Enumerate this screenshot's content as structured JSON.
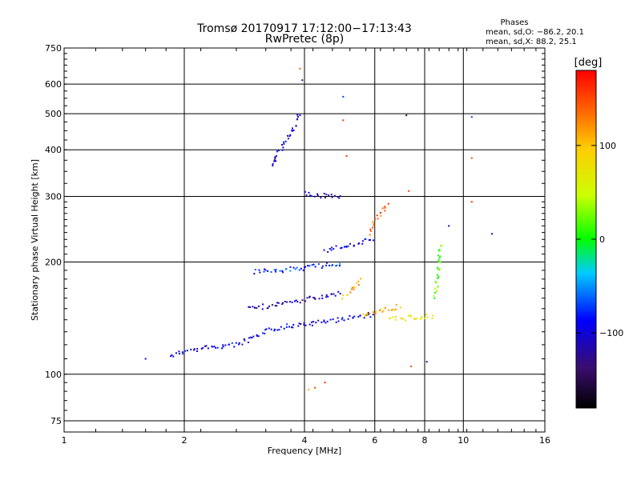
{
  "header": {
    "title_line1": "Tromsø 20170917 17:12:00−17:13:43",
    "title_line2": "RwPretec (8p)"
  },
  "phases_panel": {
    "label": "Phases",
    "line_o": "mean, sd,O: −86.2, 20.1",
    "line_x": "mean, sd,X:  88.2, 25.1"
  },
  "colorbar": {
    "label": "[deg]",
    "ticks": [
      "100",
      "0",
      "−100"
    ],
    "tick_values": [
      100,
      0,
      -100
    ],
    "range": [
      -180,
      180
    ]
  },
  "chart_data": {
    "type": "scatter",
    "title": "Tromsø 20170917 17:12:00−17:13:43",
    "subtitle": "RwPretec (8p)",
    "xlabel": "Frequency [MHz]",
    "ylabel": "Stationary phase Virtual Height [km]",
    "x_scale": "log",
    "y_scale": "log",
    "xlim": [
      1,
      16
    ],
    "ylim": [
      70,
      750
    ],
    "x_ticks": [
      1,
      2,
      4,
      6,
      8,
      10,
      16
    ],
    "x_tick_labels": [
      "1",
      "2",
      "4",
      "6",
      "8",
      "10",
      "16"
    ],
    "y_ticks": [
      75,
      100,
      200,
      300,
      400,
      500,
      600,
      750
    ],
    "y_tick_labels": [
      "75",
      "100",
      "200",
      "300",
      "400",
      "500",
      "600",
      "750"
    ],
    "grid": true,
    "color_by": "phase (deg)",
    "traces": [
      {
        "x": [
          1.85,
          2.0,
          2.3,
          2.7,
          3.0,
          3.2,
          3.5,
          4.0,
          4.5,
          5.0,
          5.5,
          6.0
        ],
        "y": [
          112,
          115,
          118,
          120,
          125,
          130,
          134,
          136,
          138,
          141,
          143,
          145
        ],
        "phase": -95
      },
      {
        "x": [
          2.9,
          3.2,
          3.6,
          4.0,
          4.5,
          5.0
        ],
        "y": [
          150,
          152,
          155,
          158,
          162,
          166
        ],
        "phase": -110
      },
      {
        "x": [
          3.0,
          3.5,
          4.0,
          4.5,
          5.0
        ],
        "y": [
          188,
          190,
          193,
          196,
          199
        ],
        "phase": -75
      },
      {
        "x": [
          3.3,
          3.4,
          3.5,
          3.6,
          3.7,
          3.8,
          3.9
        ],
        "y": [
          360,
          385,
          400,
          420,
          445,
          470,
          505
        ],
        "phase": -100
      },
      {
        "x": [
          4.0,
          4.3,
          4.6,
          5.0
        ],
        "y": [
          305,
          302,
          300,
          298
        ],
        "phase": -110
      },
      {
        "x": [
          5.0,
          5.3,
          5.6
        ],
        "y": [
          160,
          170,
          180
        ],
        "phase": 110
      },
      {
        "x": [
          5.6,
          6.0,
          6.5,
          7.0
        ],
        "y": [
          145,
          147,
          150,
          152
        ],
        "phase": 110
      },
      {
        "x": [
          6.5,
          7.0,
          7.5,
          8.0,
          8.5
        ],
        "y": [
          140,
          141,
          142,
          143,
          142
        ],
        "phase": 75
      },
      {
        "x": [
          8.5,
          8.6,
          8.7,
          8.8
        ],
        "y": [
          160,
          180,
          200,
          225
        ],
        "phase": 20
      },
      {
        "x": [
          5.8,
          6.2,
          6.5
        ],
        "y": [
          240,
          270,
          290
        ],
        "phase": 140
      },
      {
        "x": [
          4.5,
          5.0,
          5.5,
          6.0
        ],
        "y": [
          215,
          220,
          225,
          230
        ],
        "phase": -90
      }
    ],
    "isolated_points": [
      {
        "x": 1.6,
        "y": 110,
        "phase": -90
      },
      {
        "x": 4.25,
        "y": 92,
        "phase": 150
      },
      {
        "x": 4.5,
        "y": 95,
        "phase": 160
      },
      {
        "x": 4.1,
        "y": 91,
        "phase": 110
      },
      {
        "x": 5.0,
        "y": 555,
        "phase": -70
      },
      {
        "x": 5.0,
        "y": 480,
        "phase": 160
      },
      {
        "x": 3.95,
        "y": 615,
        "phase": -120
      },
      {
        "x": 3.9,
        "y": 660,
        "phase": 140
      },
      {
        "x": 7.2,
        "y": 495,
        "phase": -150
      },
      {
        "x": 10.5,
        "y": 490,
        "phase": -70
      },
      {
        "x": 10.5,
        "y": 380,
        "phase": 150
      },
      {
        "x": 10.5,
        "y": 290,
        "phase": 160
      },
      {
        "x": 11.8,
        "y": 238,
        "phase": -110
      },
      {
        "x": 9.2,
        "y": 250,
        "phase": -100
      },
      {
        "x": 7.3,
        "y": 310,
        "phase": 150
      },
      {
        "x": 5.1,
        "y": 385,
        "phase": 160
      },
      {
        "x": 7.4,
        "y": 105,
        "phase": 150
      },
      {
        "x": 8.1,
        "y": 108,
        "phase": -120
      }
    ]
  }
}
